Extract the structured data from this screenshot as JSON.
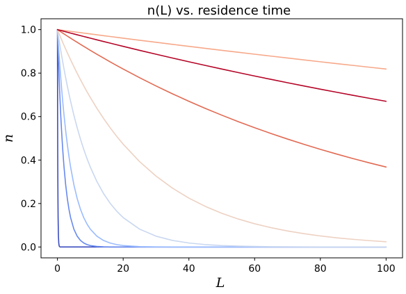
{
  "chart_data": {
    "type": "line",
    "title": "n(L) vs. residence time",
    "xlabel": "L",
    "ylabel": "n",
    "xlim": [
      -5,
      105
    ],
    "ylim": [
      -0.05,
      1.05
    ],
    "xticks": [
      0,
      20,
      40,
      60,
      80,
      100
    ],
    "yticks": [
      0.0,
      0.2,
      0.4,
      0.6,
      0.8,
      1.0
    ],
    "xtick_labels": [
      "0",
      "20",
      "40",
      "60",
      "80",
      "100"
    ],
    "ytick_labels": [
      "0.0",
      "0.2",
      "0.4",
      "0.6",
      "0.8",
      "1.0"
    ],
    "grid": false,
    "legend": "none",
    "x": [
      0,
      0.05,
      0.1,
      0.15,
      0.2,
      0.3,
      0.4,
      0.5,
      0.6,
      0.8,
      1,
      1.25,
      1.5,
      1.75,
      2,
      2.5,
      3,
      3.5,
      4,
      5,
      6,
      7,
      8,
      9,
      10,
      12,
      14,
      16,
      18,
      20,
      25,
      30,
      35,
      40,
      45,
      50,
      55,
      60,
      65,
      70,
      75,
      80,
      85,
      90,
      95,
      100
    ],
    "series": [
      {
        "color": "#3b4cc0",
        "values": [
          1,
          0.6065,
          0.3679,
          0.2231,
          0.1353,
          0.0498,
          0.0183,
          0.0067,
          0.0025,
          0.0003,
          0,
          0,
          0,
          0,
          0,
          0,
          0,
          0,
          0,
          0,
          0,
          0,
          0,
          0,
          0,
          0,
          0,
          0,
          0,
          0,
          0,
          0,
          0,
          0,
          0,
          0,
          0,
          0,
          0,
          0,
          0,
          0,
          0,
          0,
          0,
          0
        ]
      },
      {
        "color": "#6788ee",
        "values": [
          1,
          0.9753,
          0.9512,
          0.9277,
          0.9048,
          0.8607,
          0.8187,
          0.7788,
          0.7408,
          0.6703,
          0.6065,
          0.5353,
          0.4724,
          0.4169,
          0.3679,
          0.2865,
          0.2231,
          0.1738,
          0.1353,
          0.0821,
          0.0498,
          0.0302,
          0.0183,
          0.0111,
          0.0067,
          0.0025,
          0.0009,
          0.0003,
          0.0001,
          0,
          0,
          0,
          0,
          0,
          0,
          0,
          0,
          0,
          0,
          0,
          0,
          0,
          0,
          0,
          0,
          0
        ]
      },
      {
        "color": "#9abbff",
        "values": [
          1,
          0.9876,
          0.9753,
          0.9632,
          0.9512,
          0.9277,
          0.9048,
          0.8825,
          0.8607,
          0.8187,
          0.7788,
          0.7316,
          0.6873,
          0.6456,
          0.6065,
          0.5353,
          0.4724,
          0.4169,
          0.3679,
          0.2865,
          0.2231,
          0.1738,
          0.1353,
          0.1054,
          0.0821,
          0.0498,
          0.0302,
          0.0183,
          0.0111,
          0.0067,
          0.0019,
          0.0006,
          0.0002,
          0,
          0,
          0,
          0,
          0,
          0,
          0,
          0,
          0,
          0,
          0,
          0,
          0
        ]
      },
      {
        "color": "#c9d7f0",
        "values": [
          1,
          0.995,
          0.99,
          0.9851,
          0.9802,
          0.9704,
          0.9608,
          0.9512,
          0.9418,
          0.9231,
          0.9048,
          0.8825,
          0.8607,
          0.8395,
          0.8187,
          0.7788,
          0.7408,
          0.7047,
          0.6703,
          0.6065,
          0.5488,
          0.4966,
          0.4493,
          0.4066,
          0.3679,
          0.3012,
          0.2466,
          0.2019,
          0.1653,
          0.1353,
          0.0821,
          0.0498,
          0.0302,
          0.0183,
          0.0111,
          0.0067,
          0.0041,
          0.0025,
          0.0015,
          0.0009,
          0.0006,
          0.0003,
          0.0002,
          0.0001,
          0.0001,
          0
        ]
      },
      {
        "color": "#edd1c2",
        "values": [
          1,
          0.9981,
          0.9963,
          0.9944,
          0.9925,
          0.9888,
          0.9851,
          0.9814,
          0.9778,
          0.9705,
          0.9632,
          0.9543,
          0.9454,
          0.9366,
          0.9277,
          0.9107,
          0.8937,
          0.8777,
          0.8612,
          0.8297,
          0.799,
          0.7697,
          0.7413,
          0.714,
          0.6878,
          0.6382,
          0.592,
          0.5494,
          0.5097,
          0.473,
          0.3927,
          0.3262,
          0.2708,
          0.2249,
          0.1868,
          0.1551,
          0.1288,
          0.1069,
          0.0888,
          0.0737,
          0.0612,
          0.0508,
          0.0422,
          0.0351,
          0.0291,
          0.0242
        ]
      },
      {
        "color": "#f7a889",
        "values": [
          1,
          0.9999,
          0.9998,
          0.9997,
          0.9996,
          0.9994,
          0.9992,
          0.999,
          0.9988,
          0.9984,
          0.998,
          0.9975,
          0.997,
          0.9965,
          0.996,
          0.995,
          0.994,
          0.993,
          0.992,
          0.99,
          0.9881,
          0.9861,
          0.9841,
          0.9822,
          0.9802,
          0.9763,
          0.9724,
          0.9685,
          0.9646,
          0.9608,
          0.9512,
          0.9418,
          0.9324,
          0.9231,
          0.9139,
          0.9048,
          0.8958,
          0.8869,
          0.8781,
          0.8694,
          0.8607,
          0.8521,
          0.8437,
          0.8353,
          0.827,
          0.8187
        ]
      },
      {
        "color": "#e26952",
        "values": [
          1,
          0.9995,
          0.999,
          0.9985,
          0.998,
          0.997,
          0.996,
          0.995,
          0.994,
          0.992,
          0.99,
          0.9876,
          0.9851,
          0.9827,
          0.9802,
          0.9753,
          0.9704,
          0.9656,
          0.9608,
          0.9512,
          0.9418,
          0.9324,
          0.9231,
          0.9139,
          0.9048,
          0.8869,
          0.8694,
          0.8521,
          0.8353,
          0.8187,
          0.7788,
          0.7408,
          0.7047,
          0.6703,
          0.6376,
          0.6065,
          0.5769,
          0.5488,
          0.522,
          0.4966,
          0.4724,
          0.4493,
          0.4274,
          0.4066,
          0.3867,
          0.3679
        ]
      },
      {
        "color": "#b40426",
        "values": [
          1,
          0.9998,
          0.9996,
          0.9994,
          0.9992,
          0.9988,
          0.9984,
          0.998,
          0.9976,
          0.9968,
          0.996,
          0.995,
          0.994,
          0.993,
          0.992,
          0.99,
          0.9881,
          0.9861,
          0.9841,
          0.9802,
          0.9763,
          0.9724,
          0.9685,
          0.9646,
          0.9608,
          0.9531,
          0.9455,
          0.938,
          0.9305,
          0.9231,
          0.9048,
          0.8869,
          0.8694,
          0.8521,
          0.8353,
          0.8187,
          0.8025,
          0.7866,
          0.7711,
          0.7558,
          0.7408,
          0.7261,
          0.7118,
          0.6977,
          0.6839,
          0.6703
        ]
      }
    ]
  }
}
